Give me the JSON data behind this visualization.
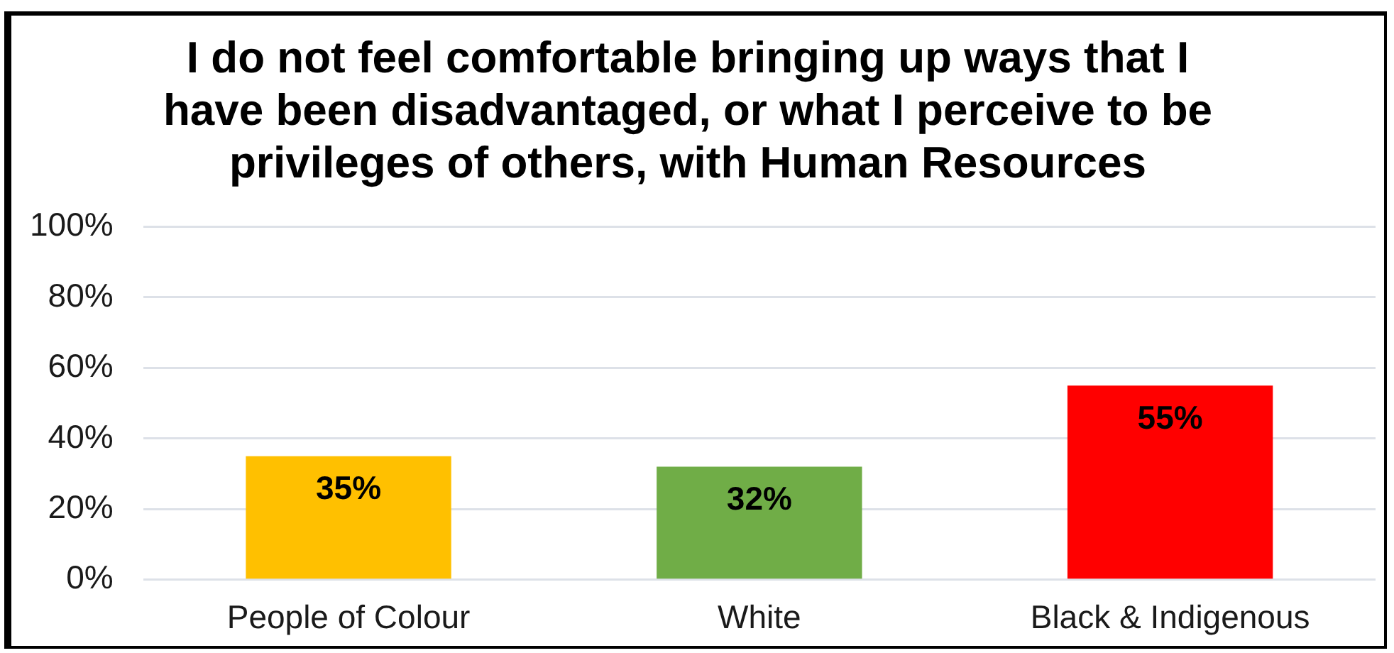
{
  "chart_data": {
    "type": "bar",
    "title": "I do not feel comfortable bringing up ways that I have been disadvantaged, or what I perceive to be privileges of others, with Human Resources",
    "categories": [
      "People of Colour",
      "White",
      "Black & Indigenous"
    ],
    "values": [
      35,
      32,
      55
    ],
    "colors": [
      "#ffc000",
      "#70ad47",
      "#ff0000"
    ],
    "value_labels": [
      "35%",
      "32%",
      "55%"
    ],
    "ylim": [
      0,
      100
    ],
    "yticks": [
      {
        "value": 0,
        "label": "0%"
      },
      {
        "value": 20,
        "label": "20%"
      },
      {
        "value": 40,
        "label": "40%"
      },
      {
        "value": 60,
        "label": "60%"
      },
      {
        "value": 80,
        "label": "80%"
      },
      {
        "value": 100,
        "label": "100%"
      }
    ],
    "grid": "y"
  }
}
